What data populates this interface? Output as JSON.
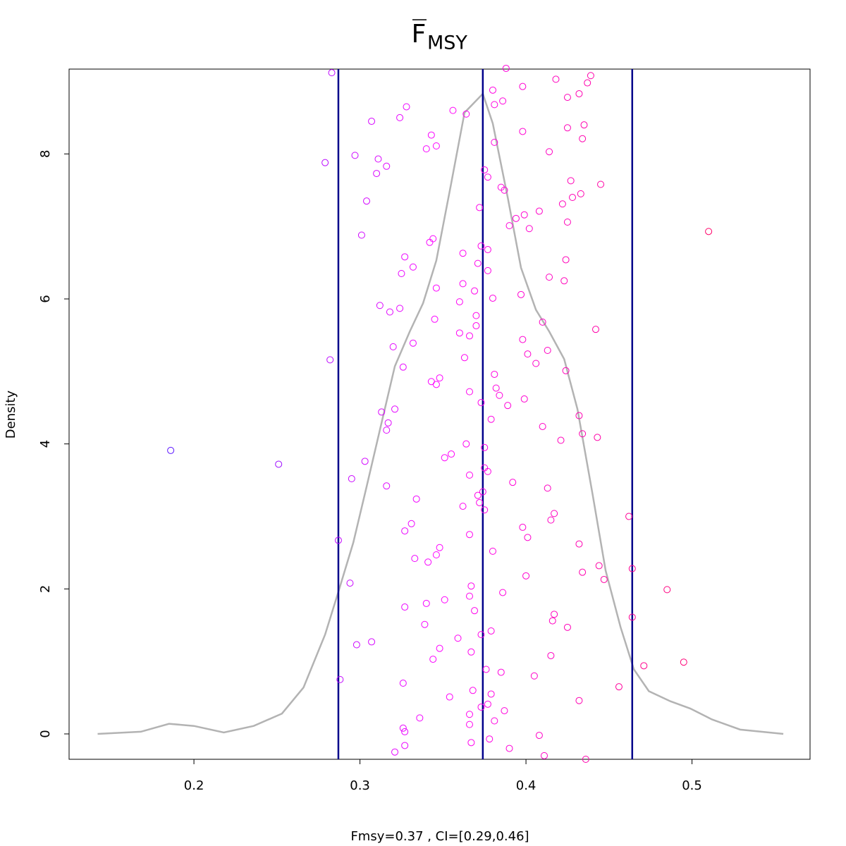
{
  "chart_data": {
    "type": "density",
    "title": "F",
    "title_subscript": "MSY",
    "xlabel": "Fmsy=0.37 , CI=[0.29,0.46]",
    "ylabel": "Density",
    "xlim": [
      0.1248,
      0.5711
    ],
    "ylim": [
      -0.35,
      9.17
    ],
    "xticks": [
      0.2,
      0.3,
      0.4,
      0.5
    ],
    "yticks": [
      0,
      2,
      4,
      6,
      8
    ],
    "grid": false,
    "density": {
      "color": "#b3b3b3",
      "x": [
        0.142,
        0.168,
        0.185,
        0.2,
        0.218,
        0.236,
        0.253,
        0.266,
        0.279,
        0.287,
        0.296,
        0.304,
        0.313,
        0.321,
        0.33,
        0.338,
        0.346,
        0.355,
        0.363,
        0.374,
        0.38,
        0.389,
        0.397,
        0.406,
        0.414,
        0.423,
        0.431,
        0.44,
        0.448,
        0.457,
        0.465,
        0.474,
        0.487,
        0.499,
        0.512,
        0.529,
        0.555
      ],
      "y": [
        0,
        0.03,
        0.14,
        0.11,
        0.02,
        0.11,
        0.28,
        0.64,
        1.37,
        1.96,
        2.64,
        3.41,
        4.29,
        5.07,
        5.55,
        5.94,
        6.53,
        7.6,
        8.57,
        8.83,
        8.42,
        7.4,
        6.43,
        5.85,
        5.55,
        5.17,
        4.48,
        3.32,
        2.25,
        1.47,
        0.89,
        0.59,
        0.45,
        0.35,
        0.2,
        0.06,
        0
      ]
    },
    "vlines": {
      "color": "#00008b",
      "values": [
        0.287,
        0.374,
        0.464
      ]
    },
    "points": {
      "color_scale": [
        "#2020ff",
        "#ff00ff",
        "#ff0030"
      ],
      "x": [
        0.283,
        0.388,
        0.439,
        0.437,
        0.418,
        0.398,
        0.38,
        0.432,
        0.425,
        0.386,
        0.381,
        0.328,
        0.356,
        0.364,
        0.324,
        0.307,
        0.435,
        0.425,
        0.398,
        0.343,
        0.434,
        0.381,
        0.346,
        0.34,
        0.414,
        0.297,
        0.311,
        0.279,
        0.316,
        0.375,
        0.31,
        0.377,
        0.427,
        0.445,
        0.385,
        0.387,
        0.433,
        0.428,
        0.304,
        0.422,
        0.372,
        0.408,
        0.399,
        0.394,
        0.425,
        0.39,
        0.402,
        0.51,
        0.301,
        0.344,
        0.342,
        0.373,
        0.377,
        0.362,
        0.327,
        0.424,
        0.371,
        0.332,
        0.377,
        0.325,
        0.414,
        0.423,
        0.362,
        0.346,
        0.369,
        0.397,
        0.38,
        0.36,
        0.312,
        0.324,
        0.318,
        0.37,
        0.345,
        0.41,
        0.37,
        0.442,
        0.36,
        0.366,
        0.398,
        0.332,
        0.32,
        0.413,
        0.401,
        0.363,
        0.282,
        0.406,
        0.326,
        0.424,
        0.381,
        0.348,
        0.343,
        0.346,
        0.366,
        0.382,
        0.384,
        0.399,
        0.373,
        0.389,
        0.321,
        0.313,
        0.432,
        0.379,
        0.317,
        0.316,
        0.41,
        0.434,
        0.443,
        0.421,
        0.364,
        0.375,
        0.186,
        0.355,
        0.351,
        0.303,
        0.251,
        0.375,
        0.377,
        0.366,
        0.295,
        0.392,
        0.316,
        0.413,
        0.374,
        0.371,
        0.334,
        0.372,
        0.362,
        0.375,
        0.417,
        0.462,
        0.415,
        0.331,
        0.398,
        0.327,
        0.366,
        0.401,
        0.287,
        0.432,
        0.348,
        0.38,
        0.346,
        0.333,
        0.341,
        0.444,
        0.464,
        0.434,
        0.4,
        0.447,
        0.294,
        0.367,
        0.485,
        0.386,
        0.366,
        0.351,
        0.34,
        0.327,
        0.369,
        0.417,
        0.464,
        0.416,
        0.339,
        0.425,
        0.379,
        0.373,
        0.359,
        0.307,
        0.298,
        0.348,
        0.367,
        0.415,
        0.344,
        0.495,
        0.471,
        0.376,
        0.385,
        0.405,
        0.288,
        0.326,
        0.456,
        0.368,
        0.379,
        0.354,
        0.432,
        0.377,
        0.373,
        0.387,
        0.366,
        0.336,
        0.381,
        0.366,
        0.326,
        0.327,
        0.408,
        0.378,
        0.367,
        0.327,
        0.39,
        0.321,
        0.411,
        0.436
      ],
      "y": [
        9.12,
        9.18,
        9.08,
        8.98,
        9.03,
        8.93,
        8.88,
        8.83,
        8.78,
        8.73,
        8.68,
        8.65,
        8.6,
        8.55,
        8.5,
        8.45,
        8.4,
        8.36,
        8.31,
        8.26,
        8.21,
        8.16,
        8.11,
        8.07,
        8.03,
        7.98,
        7.93,
        7.88,
        7.83,
        7.78,
        7.73,
        7.68,
        7.63,
        7.58,
        7.54,
        7.5,
        7.45,
        7.4,
        7.35,
        7.31,
        7.26,
        7.21,
        7.16,
        7.11,
        7.06,
        7.01,
        6.97,
        6.93,
        6.88,
        6.83,
        6.78,
        6.73,
        6.68,
        6.63,
        6.58,
        6.54,
        6.49,
        6.44,
        6.39,
        6.35,
        6.3,
        6.25,
        6.21,
        6.15,
        6.11,
        6.06,
        6.01,
        5.96,
        5.91,
        5.87,
        5.82,
        5.77,
        5.72,
        5.68,
        5.63,
        5.58,
        5.53,
        5.49,
        5.44,
        5.39,
        5.34,
        5.29,
        5.24,
        5.19,
        5.16,
        5.11,
        5.06,
        5.01,
        4.96,
        4.91,
        4.86,
        4.82,
        4.72,
        4.77,
        4.67,
        4.62,
        4.57,
        4.53,
        4.48,
        4.44,
        4.39,
        4.34,
        4.29,
        4.19,
        4.24,
        4.14,
        4.09,
        4.05,
        4.0,
        3.95,
        3.91,
        3.86,
        3.81,
        3.76,
        3.72,
        3.67,
        3.62,
        3.57,
        3.52,
        3.47,
        3.42,
        3.39,
        3.34,
        3.29,
        3.24,
        3.19,
        3.14,
        3.09,
        3.04,
        3.0,
        2.95,
        2.9,
        2.85,
        2.8,
        2.75,
        2.71,
        2.67,
        2.62,
        2.57,
        2.52,
        2.47,
        2.42,
        2.37,
        2.32,
        2.28,
        2.23,
        2.18,
        2.13,
        2.08,
        2.04,
        1.99,
        1.95,
        1.9,
        1.85,
        1.8,
        1.75,
        1.7,
        1.65,
        1.61,
        1.56,
        1.51,
        1.47,
        1.42,
        1.37,
        1.32,
        1.27,
        1.23,
        1.18,
        1.13,
        1.08,
        1.03,
        0.99,
        0.94,
        0.89,
        0.85,
        0.8,
        0.75,
        0.7,
        0.65,
        0.6,
        0.55,
        0.51,
        0.46,
        0.41,
        0.37,
        0.32,
        0.27,
        0.22,
        0.18,
        0.13,
        0.08,
        0.03,
        -0.02,
        -0.07,
        -0.12,
        -0.16,
        -0.2,
        -0.25,
        -0.3,
        -0.35
      ]
    }
  }
}
